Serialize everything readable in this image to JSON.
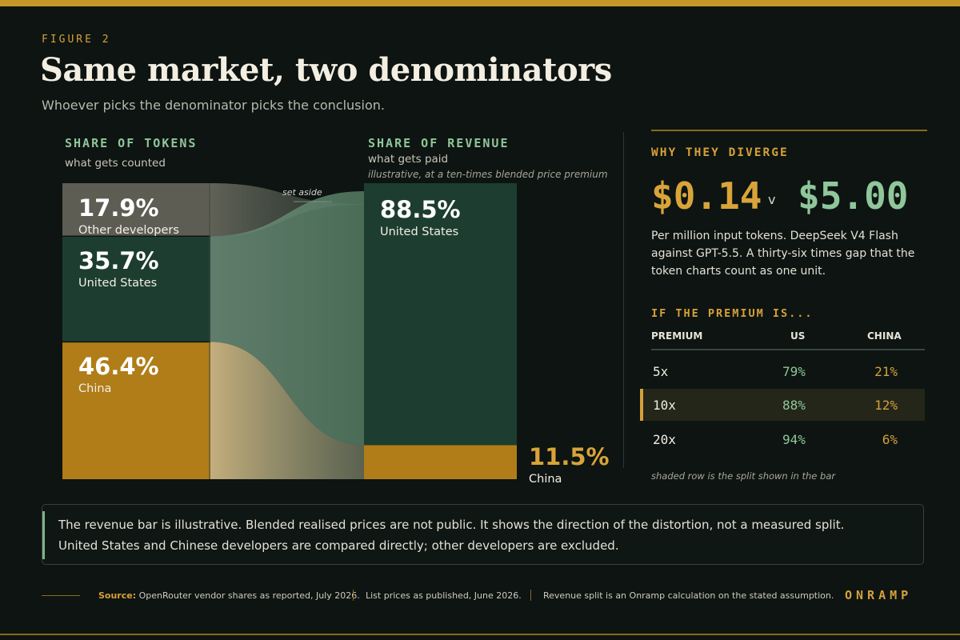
{
  "header": {
    "eyebrow": "FIGURE 2",
    "title": "Same market, two denominators",
    "subtitle": "Whoever picks the denominator picks the conclusion."
  },
  "left_columns": {
    "tokens_label": "SHARE OF TOKENS",
    "tokens_sub": "what gets counted",
    "revenue_label": "SHARE OF REVENUE",
    "revenue_sub": "what gets paid",
    "revenue_note": "illustrative, at a ten-times blended price premium",
    "set_aside": "set aside"
  },
  "chart_data": {
    "type": "bar",
    "title": "",
    "bars": [
      {
        "name": "Share of tokens",
        "segments": [
          {
            "name": "Other developers",
            "value": 17.9,
            "label": "17.9%"
          },
          {
            "name": "United States",
            "value": 35.7,
            "label": "35.7%"
          },
          {
            "name": "China",
            "value": 46.4,
            "label": "46.4%"
          }
        ]
      },
      {
        "name": "Share of revenue",
        "segments": [
          {
            "name": "United States",
            "value": 88.5,
            "label": "88.5%"
          },
          {
            "name": "China",
            "value": 11.5,
            "label": "11.5%"
          }
        ]
      }
    ],
    "colors": {
      "other": "#6d6a60",
      "us": "#1d3d30",
      "china": "#b07d18"
    }
  },
  "right_panel": {
    "label": "WHY THEY DIVERGE",
    "price_china": "$0.14",
    "versus": "v",
    "price_us": "$5.00",
    "description": "Per million input tokens. DeepSeek V4 Flash against GPT-5.5. A thirty-six times gap that the token charts count as one unit.",
    "table_label": "IF THE PREMIUM IS...",
    "table_headers": {
      "premium": "PREMIUM",
      "us": "US",
      "china": "CHINA"
    },
    "rows": [
      {
        "premium": "5x",
        "us": "79%",
        "china": "21%",
        "highlight": false
      },
      {
        "premium": "10x",
        "us": "88%",
        "china": "12%",
        "highlight": true
      },
      {
        "premium": "20x",
        "us": "94%",
        "china": "6%",
        "highlight": false
      }
    ],
    "shade_note": "shaded row is the split shown in the bar"
  },
  "note": {
    "line1": "The revenue bar is illustrative. Blended realised prices are not public. It shows the direction of the distortion, not a measured split.",
    "line2": "United States and Chinese developers are compared directly; other developers are excluded."
  },
  "footer": {
    "source_label": "Source:",
    "source_text": " OpenRouter vendor shares as reported, July 2026.",
    "prices": "List prices as published, June 2026.",
    "calc": "Revenue split is an Onramp calculation on the stated assumption.",
    "brand": "ONRAMP"
  }
}
